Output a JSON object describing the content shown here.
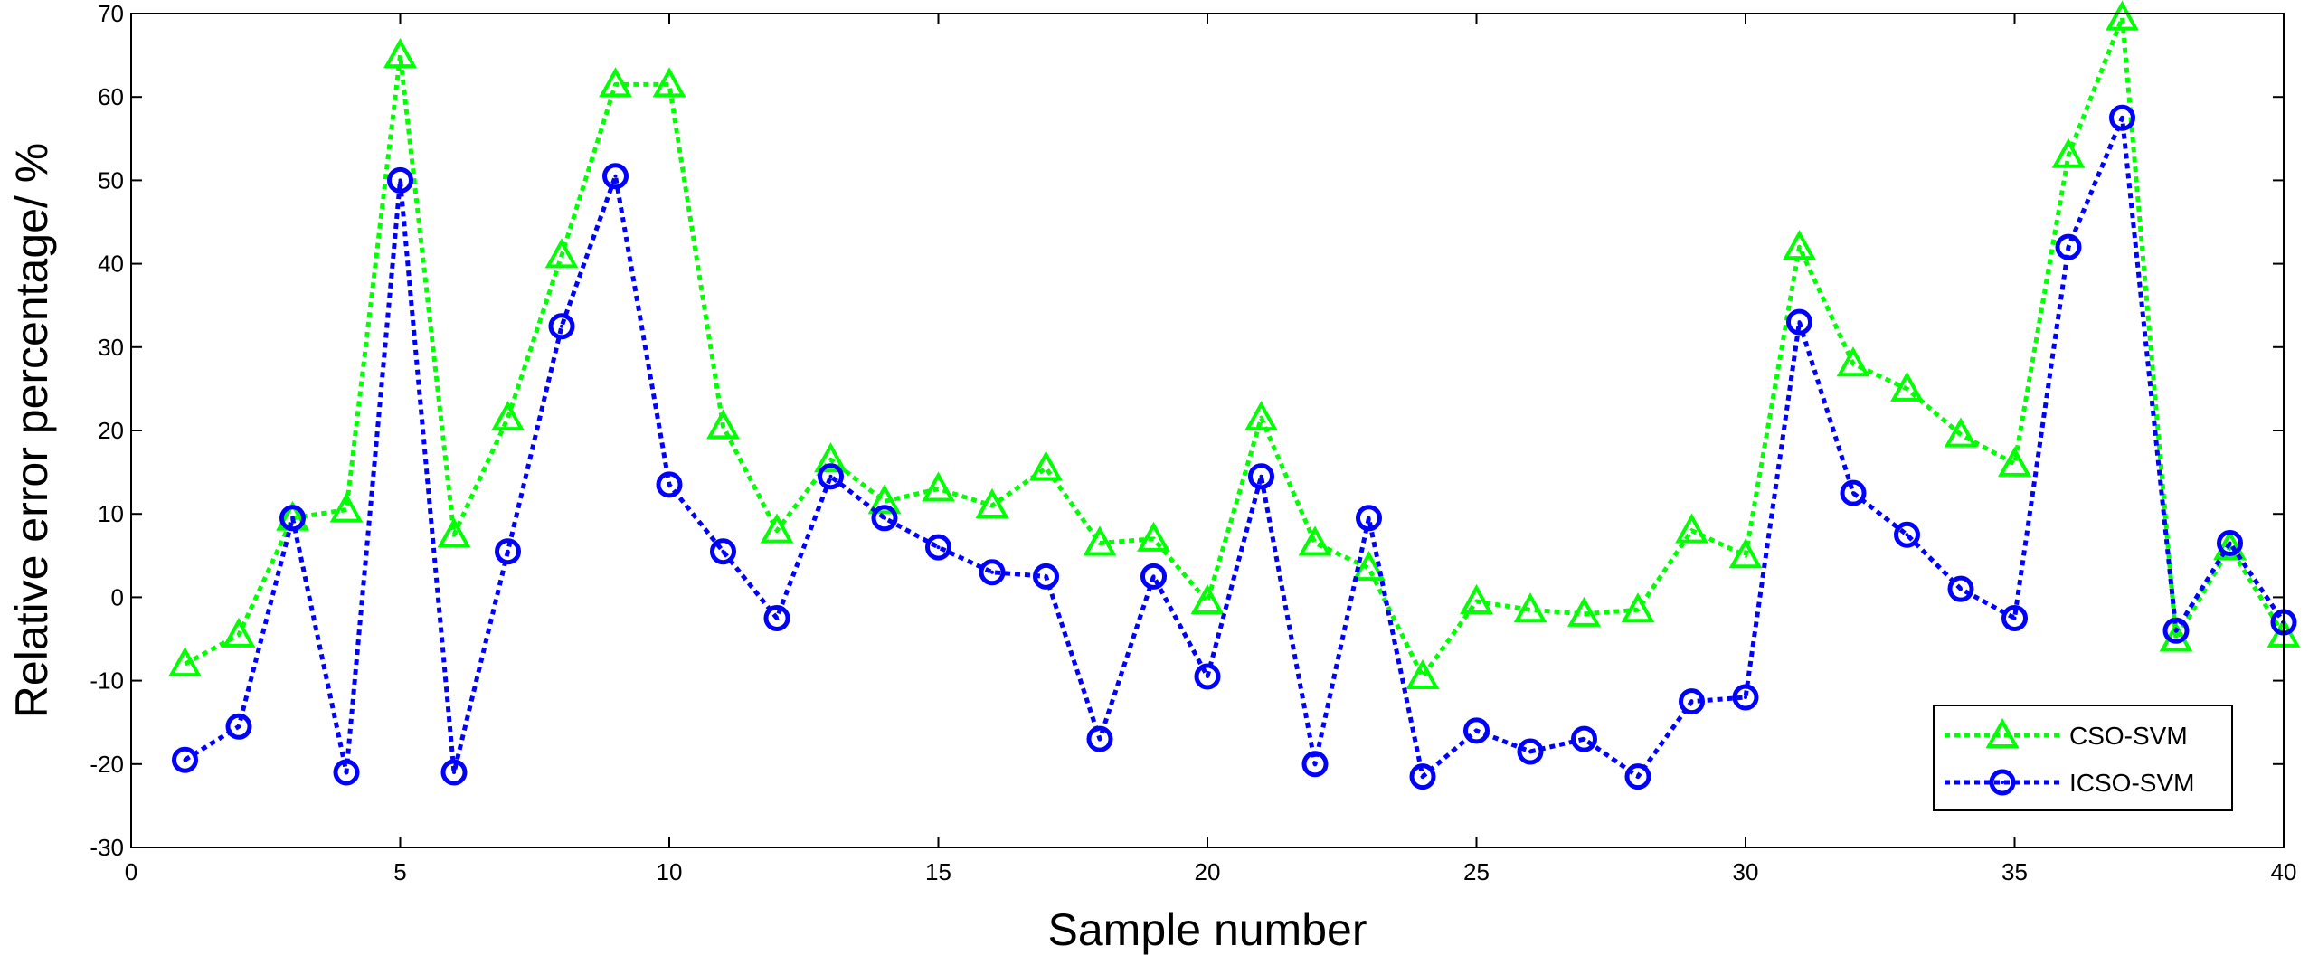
{
  "chart_data": {
    "type": "line",
    "title": "",
    "xlabel": "Sample number",
    "ylabel": "Relative error percentage/ %",
    "xlim": [
      0,
      40
    ],
    "ylim": [
      -30,
      70
    ],
    "xticks": [
      0,
      5,
      10,
      15,
      20,
      25,
      30,
      35,
      40
    ],
    "yticks": [
      -30,
      -20,
      -10,
      0,
      10,
      20,
      30,
      40,
      50,
      60,
      70
    ],
    "grid": false,
    "legend_position": "bottom-right",
    "x": [
      1,
      2,
      3,
      4,
      5,
      6,
      7,
      8,
      9,
      10,
      11,
      12,
      13,
      14,
      15,
      16,
      17,
      18,
      19,
      20,
      21,
      22,
      23,
      24,
      25,
      26,
      27,
      28,
      29,
      30,
      31,
      32,
      33,
      34,
      35,
      36,
      37,
      38,
      39,
      40
    ],
    "series": [
      {
        "name": "CSO-SVM",
        "color": "#00ff00",
        "marker": "triangle",
        "values": [
          -8,
          -4.5,
          9.5,
          10.5,
          65,
          7.5,
          21.5,
          41,
          61.5,
          61.5,
          20.5,
          8,
          16.5,
          11.5,
          13,
          11,
          15.5,
          6.5,
          7,
          -0.5,
          21.5,
          6.5,
          3.5,
          -9.5,
          -0.5,
          -1.5,
          -2,
          -1.5,
          8,
          5,
          42,
          28,
          25,
          19.5,
          16,
          53,
          69.5,
          -5,
          6,
          -4.5
        ]
      },
      {
        "name": "ICSO-SVM",
        "color": "#0000ff",
        "marker": "circle",
        "values": [
          -19.5,
          -15.5,
          9.5,
          -21,
          50,
          -21,
          5.5,
          32.5,
          50.5,
          13.5,
          5.5,
          -2.5,
          14.5,
          9.5,
          6,
          3,
          2.5,
          -17,
          2.5,
          -9.5,
          14.5,
          -20,
          9.5,
          -21.5,
          -16,
          -18.5,
          -17,
          -21.5,
          -12.5,
          -12,
          33,
          12.5,
          7.5,
          1,
          -2.5,
          42,
          57.5,
          -4,
          6.5,
          -3
        ]
      }
    ]
  }
}
